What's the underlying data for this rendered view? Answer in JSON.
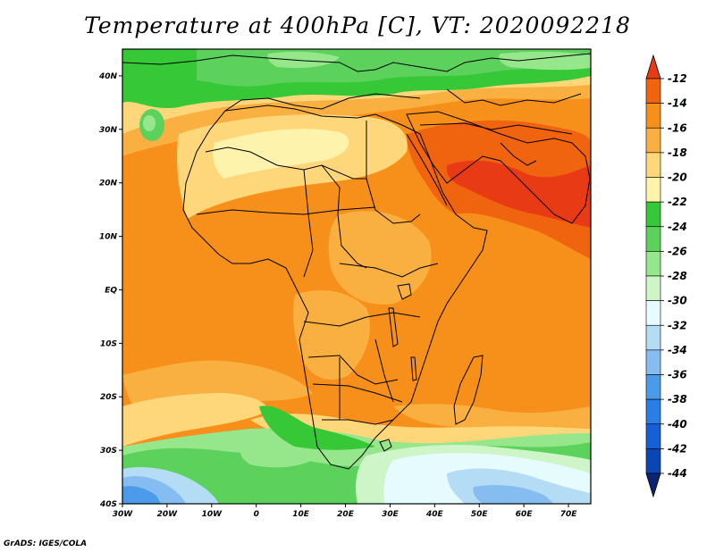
{
  "title": "Temperature at 400hPa [C], VT: 2020092218",
  "credit": "GrADS: IGES/COLA",
  "map": {
    "lon_range": [
      -30,
      75
    ],
    "lat_range": [
      -40,
      45
    ],
    "lon_ticks": [
      "30W",
      "20W",
      "10W",
      "0",
      "10E",
      "20E",
      "30E",
      "40E",
      "50E",
      "60E",
      "70E"
    ],
    "lat_ticks": [
      "40S",
      "30S",
      "20S",
      "10S",
      "EQ",
      "10N",
      "20N",
      "30N",
      "40N"
    ]
  },
  "colorbar": {
    "labels": [
      "-12",
      "-14",
      "-16",
      "-18",
      "-20",
      "-22",
      "-24",
      "-26",
      "-28",
      "-30",
      "-32",
      "-34",
      "-36",
      "-38",
      "-40",
      "-42",
      "-44"
    ],
    "colors": [
      "#e83a14",
      "#f06410",
      "#f7901a",
      "#fab040",
      "#fdd77a",
      "#fdf3ad",
      "#37c837",
      "#5cd25c",
      "#96e68c",
      "#cdf5c8",
      "#e6fbfd",
      "#b4dcf5",
      "#86bdf0",
      "#4c9bea",
      "#2b7ee8",
      "#1560d6",
      "#0a46b4",
      "#0a2473"
    ]
  }
}
